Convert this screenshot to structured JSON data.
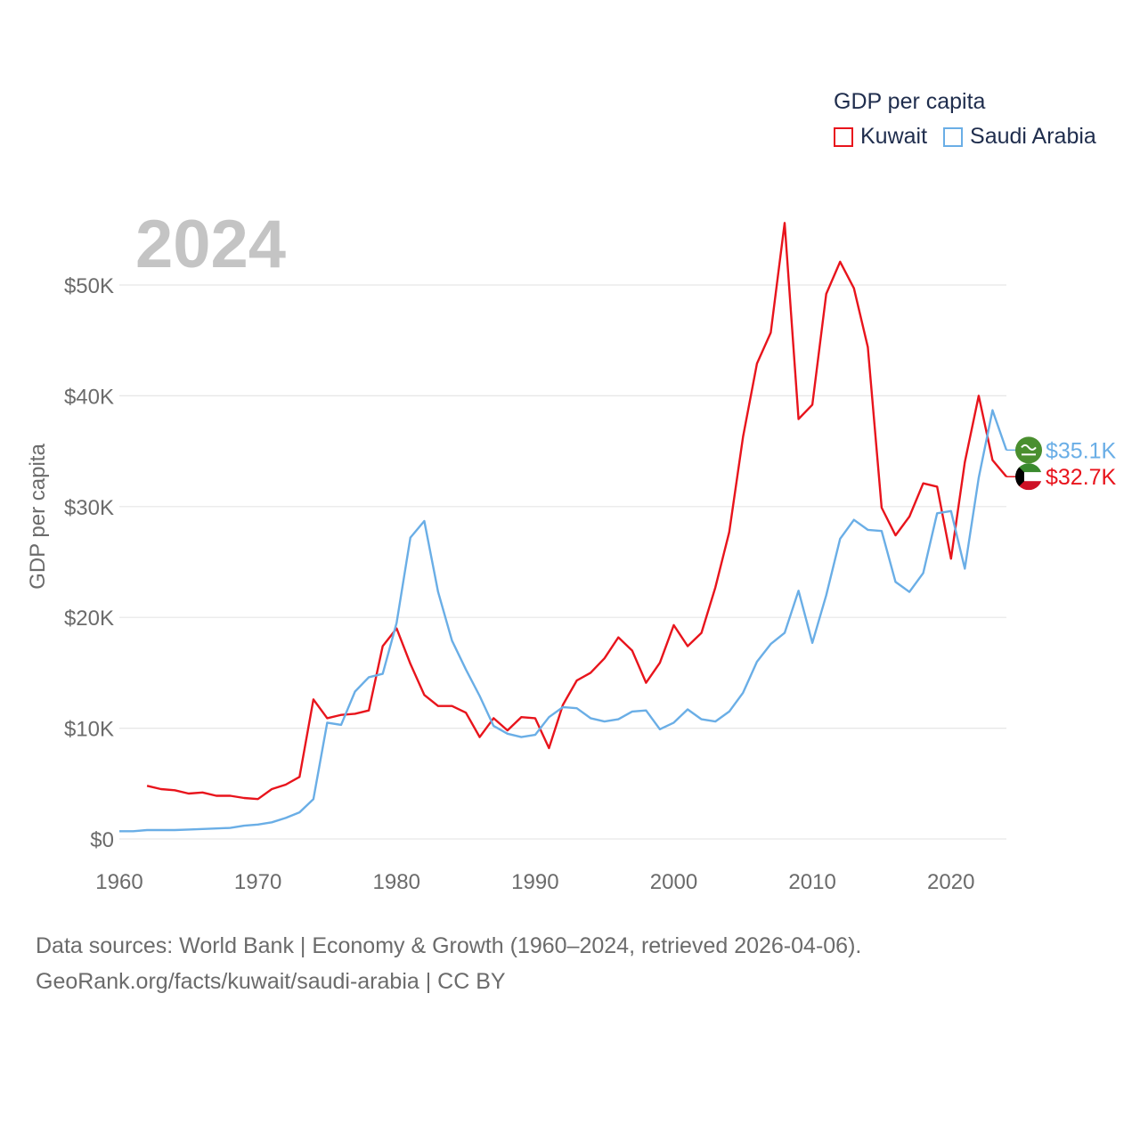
{
  "legend": {
    "title": "GDP per capita",
    "items": [
      {
        "label": "Kuwait",
        "color": "#e8141c"
      },
      {
        "label": "Saudi Arabia",
        "color": "#6aaee6"
      }
    ]
  },
  "source": {
    "line1": "Data sources: World Bank | Economy & Growth (1960–2024, retrieved 2026-04-06).",
    "line2": "GeoRank.org/facts/kuwait/saudi-arabia | CC BY"
  },
  "chart_data": {
    "type": "line",
    "title": "2024",
    "xlabel": "",
    "ylabel": "GDP per capita",
    "xlim": [
      1960,
      2024
    ],
    "ylim": [
      0,
      55000
    ],
    "grid": true,
    "legend_position": "top-right",
    "x_ticks": [
      {
        "value": 1960,
        "label": "1960"
      },
      {
        "value": 1970,
        "label": "1970"
      },
      {
        "value": 1980,
        "label": "1980"
      },
      {
        "value": 1990,
        "label": "1990"
      },
      {
        "value": 2000,
        "label": "2000"
      },
      {
        "value": 2010,
        "label": "2010"
      },
      {
        "value": 2020,
        "label": "2020"
      }
    ],
    "y_ticks": [
      {
        "value": 0,
        "label": "$0"
      },
      {
        "value": 10000,
        "label": "$10K"
      },
      {
        "value": 20000,
        "label": "$20K"
      },
      {
        "value": 30000,
        "label": "$30K"
      },
      {
        "value": 40000,
        "label": "$40K"
      },
      {
        "value": 50000,
        "label": "$50K"
      }
    ],
    "series": [
      {
        "name": "Kuwait",
        "color": "#e8141c",
        "end_label": "$32.7K",
        "flag_icon": "kuwait-flag-icon",
        "points": [
          [
            1962,
            4800
          ],
          [
            1963,
            4500
          ],
          [
            1964,
            4400
          ],
          [
            1965,
            4100
          ],
          [
            1966,
            4200
          ],
          [
            1967,
            3900
          ],
          [
            1968,
            3900
          ],
          [
            1969,
            3700
          ],
          [
            1970,
            3600
          ],
          [
            1971,
            4500
          ],
          [
            1972,
            4900
          ],
          [
            1973,
            5600
          ],
          [
            1974,
            12600
          ],
          [
            1975,
            10900
          ],
          [
            1976,
            11200
          ],
          [
            1977,
            11300
          ],
          [
            1978,
            11600
          ],
          [
            1979,
            17400
          ],
          [
            1980,
            19000
          ],
          [
            1981,
            15800
          ],
          [
            1982,
            13000
          ],
          [
            1983,
            12000
          ],
          [
            1984,
            12000
          ],
          [
            1985,
            11400
          ],
          [
            1986,
            9200
          ],
          [
            1987,
            10900
          ],
          [
            1988,
            9800
          ],
          [
            1989,
            11000
          ],
          [
            1990,
            10900
          ],
          [
            1991,
            8200
          ],
          [
            1992,
            12100
          ],
          [
            1993,
            14300
          ],
          [
            1994,
            15000
          ],
          [
            1995,
            16300
          ],
          [
            1996,
            18200
          ],
          [
            1997,
            17000
          ],
          [
            1998,
            14100
          ],
          [
            1999,
            15900
          ],
          [
            2000,
            19300
          ],
          [
            2001,
            17400
          ],
          [
            2002,
            18600
          ],
          [
            2003,
            22700
          ],
          [
            2004,
            27700
          ],
          [
            2005,
            36300
          ],
          [
            2006,
            42900
          ],
          [
            2007,
            45700
          ],
          [
            2008,
            55600
          ],
          [
            2009,
            37900
          ],
          [
            2010,
            39200
          ],
          [
            2011,
            49200
          ],
          [
            2012,
            52100
          ],
          [
            2013,
            49700
          ],
          [
            2014,
            44400
          ],
          [
            2015,
            29900
          ],
          [
            2016,
            27400
          ],
          [
            2017,
            29100
          ],
          [
            2018,
            32100
          ],
          [
            2019,
            31800
          ],
          [
            2020,
            25300
          ],
          [
            2021,
            34000
          ],
          [
            2022,
            40000
          ],
          [
            2023,
            34200
          ],
          [
            2024,
            32700
          ]
        ]
      },
      {
        "name": "Saudi Arabia",
        "color": "#6aaee6",
        "end_label": "$35.1K",
        "flag_icon": "saudi-arabia-flag-icon",
        "points": [
          [
            1960,
            700
          ],
          [
            1961,
            700
          ],
          [
            1962,
            800
          ],
          [
            1963,
            800
          ],
          [
            1964,
            800
          ],
          [
            1965,
            850
          ],
          [
            1966,
            900
          ],
          [
            1967,
            950
          ],
          [
            1968,
            1000
          ],
          [
            1969,
            1200
          ],
          [
            1970,
            1300
          ],
          [
            1971,
            1500
          ],
          [
            1972,
            1900
          ],
          [
            1973,
            2400
          ],
          [
            1974,
            3600
          ],
          [
            1975,
            10500
          ],
          [
            1976,
            10300
          ],
          [
            1977,
            13300
          ],
          [
            1978,
            14600
          ],
          [
            1979,
            14900
          ],
          [
            1980,
            19500
          ],
          [
            1981,
            27200
          ],
          [
            1982,
            28700
          ],
          [
            1983,
            22300
          ],
          [
            1984,
            17900
          ],
          [
            1985,
            15300
          ],
          [
            1986,
            12900
          ],
          [
            1987,
            10200
          ],
          [
            1988,
            9500
          ],
          [
            1989,
            9200
          ],
          [
            1990,
            9400
          ],
          [
            1991,
            11000
          ],
          [
            1992,
            11900
          ],
          [
            1993,
            11800
          ],
          [
            1994,
            10900
          ],
          [
            1995,
            10600
          ],
          [
            1996,
            10800
          ],
          [
            1997,
            11500
          ],
          [
            1998,
            11600
          ],
          [
            1999,
            9900
          ],
          [
            2000,
            10500
          ],
          [
            2001,
            11700
          ],
          [
            2002,
            10800
          ],
          [
            2003,
            10600
          ],
          [
            2004,
            11500
          ],
          [
            2005,
            13200
          ],
          [
            2006,
            16000
          ],
          [
            2007,
            17600
          ],
          [
            2008,
            18600
          ],
          [
            2009,
            22400
          ],
          [
            2010,
            17700
          ],
          [
            2011,
            22000
          ],
          [
            2012,
            27100
          ],
          [
            2013,
            28800
          ],
          [
            2014,
            27900
          ],
          [
            2015,
            27800
          ],
          [
            2016,
            23200
          ],
          [
            2017,
            22300
          ],
          [
            2018,
            24000
          ],
          [
            2019,
            29400
          ],
          [
            2020,
            29600
          ],
          [
            2021,
            24400
          ],
          [
            2022,
            32600
          ],
          [
            2023,
            38700
          ],
          [
            2024,
            35100
          ]
        ]
      }
    ]
  }
}
